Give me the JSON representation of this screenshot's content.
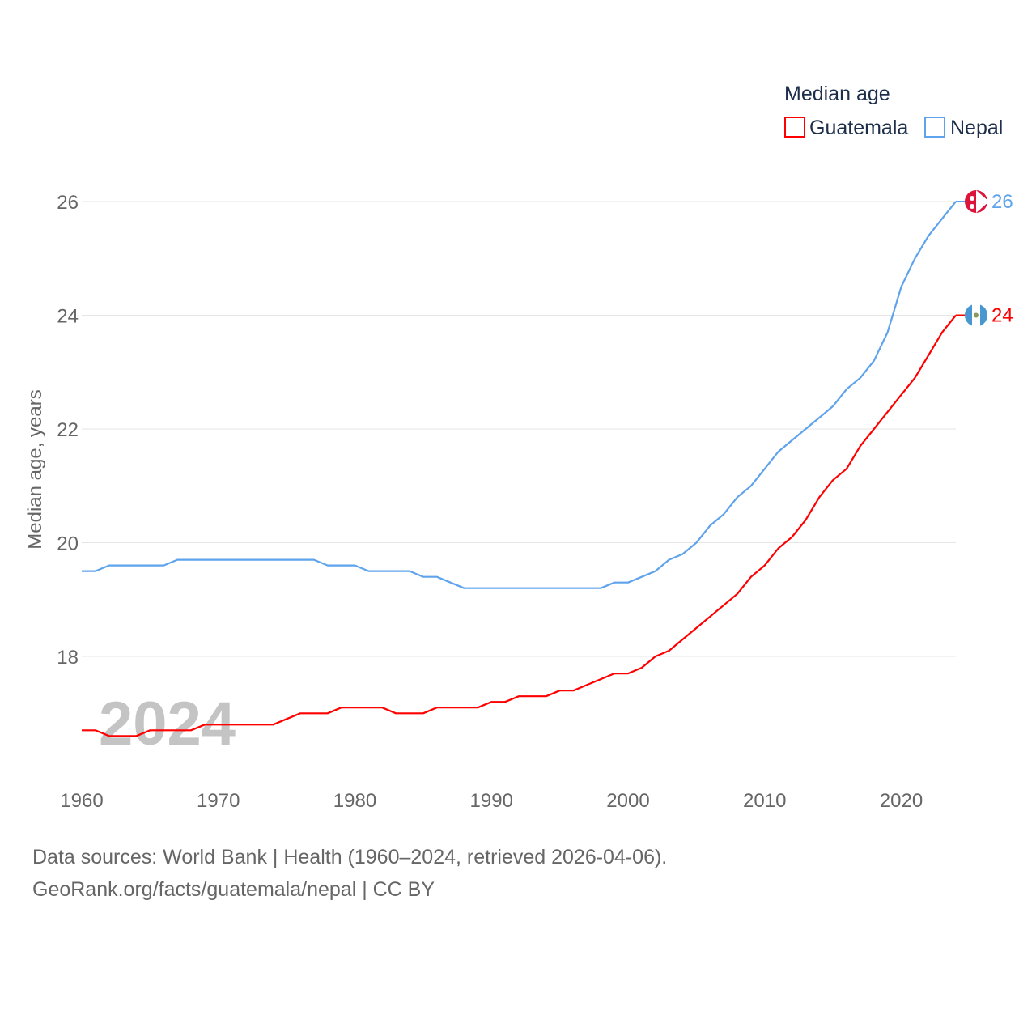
{
  "chart_data": {
    "type": "line",
    "title": "Median age",
    "xlabel": "",
    "ylabel": "Median age, years",
    "xlim": [
      1960,
      2024
    ],
    "ylim": [
      16,
      26.5
    ],
    "yticks": [
      18,
      20,
      22,
      24,
      26
    ],
    "xticks": [
      1960,
      1970,
      1980,
      1990,
      2000,
      2010,
      2020
    ],
    "grid": true,
    "legend_position": "top-right",
    "watermark_year": "2024",
    "x": [
      1960,
      1961,
      1962,
      1963,
      1964,
      1965,
      1966,
      1967,
      1968,
      1969,
      1970,
      1971,
      1972,
      1973,
      1974,
      1975,
      1976,
      1977,
      1978,
      1979,
      1980,
      1981,
      1982,
      1983,
      1984,
      1985,
      1986,
      1987,
      1988,
      1989,
      1990,
      1991,
      1992,
      1993,
      1994,
      1995,
      1996,
      1997,
      1998,
      1999,
      2000,
      2001,
      2002,
      2003,
      2004,
      2005,
      2006,
      2007,
      2008,
      2009,
      2010,
      2011,
      2012,
      2013,
      2014,
      2015,
      2016,
      2017,
      2018,
      2019,
      2020,
      2021,
      2022,
      2023,
      2024
    ],
    "series": [
      {
        "name": "Guatemala",
        "color": "#ff0000",
        "end_label": "24",
        "values": [
          16.7,
          16.7,
          16.6,
          16.6,
          16.6,
          16.7,
          16.7,
          16.7,
          16.7,
          16.8,
          16.8,
          16.8,
          16.8,
          16.8,
          16.8,
          16.9,
          17.0,
          17.0,
          17.0,
          17.1,
          17.1,
          17.1,
          17.1,
          17.0,
          17.0,
          17.0,
          17.1,
          17.1,
          17.1,
          17.1,
          17.2,
          17.2,
          17.3,
          17.3,
          17.3,
          17.4,
          17.4,
          17.5,
          17.6,
          17.7,
          17.7,
          17.8,
          18.0,
          18.1,
          18.3,
          18.5,
          18.7,
          18.9,
          19.1,
          19.4,
          19.6,
          19.9,
          20.1,
          20.4,
          20.8,
          21.1,
          21.3,
          21.7,
          22.0,
          22.3,
          22.6,
          22.9,
          23.3,
          23.7,
          24.0
        ]
      },
      {
        "name": "Nepal",
        "color": "#5ea3ec",
        "end_label": "26",
        "values": [
          19.5,
          19.5,
          19.6,
          19.6,
          19.6,
          19.6,
          19.6,
          19.7,
          19.7,
          19.7,
          19.7,
          19.7,
          19.7,
          19.7,
          19.7,
          19.7,
          19.7,
          19.7,
          19.6,
          19.6,
          19.6,
          19.5,
          19.5,
          19.5,
          19.5,
          19.4,
          19.4,
          19.3,
          19.2,
          19.2,
          19.2,
          19.2,
          19.2,
          19.2,
          19.2,
          19.2,
          19.2,
          19.2,
          19.2,
          19.3,
          19.3,
          19.4,
          19.5,
          19.7,
          19.8,
          20.0,
          20.3,
          20.5,
          20.8,
          21.0,
          21.3,
          21.6,
          21.8,
          22.0,
          22.2,
          22.4,
          22.7,
          22.9,
          23.2,
          23.7,
          24.5,
          25.0,
          25.4,
          25.7,
          26.0
        ]
      }
    ]
  },
  "footer": {
    "line1": "Data sources: World Bank | Health (1960–2024, retrieved 2026-04-06).",
    "line2": "GeoRank.org/facts/guatemala/nepal | CC BY"
  }
}
